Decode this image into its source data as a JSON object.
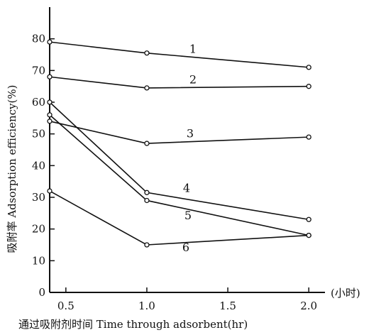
{
  "chart_data": {
    "type": "line",
    "xlabel": "通过吸附剂时间 Time through adsorbent(hr)",
    "ylabel": "吸附率 Adsorption efficiency(%)",
    "x_unit_note": "(小时)",
    "xlim": [
      0.4,
      2.1
    ],
    "ylim": [
      0,
      90
    ],
    "x_ticks": [
      "0.5",
      "1.0",
      "1.5",
      "2.0"
    ],
    "x_tick_values": [
      0.5,
      1.0,
      1.5,
      2.0
    ],
    "y_ticks": [
      "0",
      "10",
      "20",
      "30",
      "40",
      "50",
      "60",
      "70",
      "80"
    ],
    "y_tick_values": [
      0,
      10,
      20,
      30,
      40,
      50,
      60,
      70,
      80
    ],
    "grid": false,
    "series": [
      {
        "name": "1",
        "x": [
          0.4,
          1.0,
          2.0
        ],
        "y": [
          79,
          75.5,
          71
        ]
      },
      {
        "name": "2",
        "x": [
          0.4,
          1.0,
          2.0
        ],
        "y": [
          68,
          64.5,
          65
        ]
      },
      {
        "name": "3",
        "x": [
          0.4,
          1.0,
          2.0
        ],
        "y": [
          54,
          47,
          49
        ]
      },
      {
        "name": "4",
        "x": [
          0.4,
          1.0,
          2.0
        ],
        "y": [
          60,
          31.5,
          23
        ]
      },
      {
        "name": "5",
        "x": [
          0.4,
          1.0,
          2.0
        ],
        "y": [
          56,
          29,
          18
        ]
      },
      {
        "name": "6",
        "x": [
          0.4,
          1.0,
          2.0
        ],
        "y": [
          32,
          15,
          18
        ]
      }
    ]
  }
}
